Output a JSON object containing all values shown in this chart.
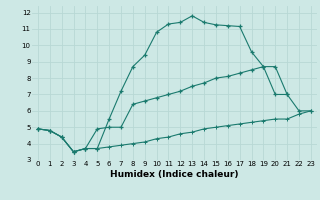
{
  "xlabel": "Humidex (Indice chaleur)",
  "bg_color": "#cde8e5",
  "grid_color": "#b8d8d5",
  "line_color": "#1a7a6e",
  "xlim": [
    -0.5,
    23.5
  ],
  "ylim": [
    3,
    12.4
  ],
  "xticks": [
    0,
    1,
    2,
    3,
    4,
    5,
    6,
    7,
    8,
    9,
    10,
    11,
    12,
    13,
    14,
    15,
    16,
    17,
    18,
    19,
    20,
    21,
    22,
    23
  ],
  "yticks": [
    3,
    4,
    5,
    6,
    7,
    8,
    9,
    10,
    11,
    12
  ],
  "line1_x": [
    0,
    1,
    2,
    3,
    4,
    5,
    6,
    7,
    8,
    9,
    10,
    11,
    12,
    13,
    14,
    15,
    16,
    17,
    18,
    19,
    20,
    21
  ],
  "line1_y": [
    4.9,
    4.8,
    4.4,
    3.5,
    3.7,
    3.7,
    5.5,
    7.2,
    8.7,
    9.4,
    10.8,
    11.3,
    11.4,
    11.8,
    11.4,
    11.25,
    11.2,
    11.15,
    9.6,
    8.7,
    7.0,
    7.0
  ],
  "line2_x": [
    0,
    1,
    2,
    3,
    4,
    5,
    6,
    7,
    8,
    9,
    10,
    11,
    12,
    13,
    14,
    15,
    16,
    17,
    18,
    19,
    20,
    21,
    22,
    23
  ],
  "line2_y": [
    4.9,
    4.8,
    4.4,
    3.5,
    3.7,
    4.9,
    5.0,
    5.0,
    6.4,
    6.6,
    6.8,
    7.0,
    7.2,
    7.5,
    7.7,
    8.0,
    8.1,
    8.3,
    8.5,
    8.7,
    8.7,
    7.0,
    6.0,
    6.0
  ],
  "line3_x": [
    0,
    1,
    2,
    3,
    4,
    5,
    6,
    7,
    8,
    9,
    10,
    11,
    12,
    13,
    14,
    15,
    16,
    17,
    18,
    19,
    20,
    21,
    22,
    23
  ],
  "line3_y": [
    4.9,
    4.8,
    4.4,
    3.5,
    3.7,
    3.7,
    3.8,
    3.9,
    4.0,
    4.1,
    4.3,
    4.4,
    4.6,
    4.7,
    4.9,
    5.0,
    5.1,
    5.2,
    5.3,
    5.4,
    5.5,
    5.5,
    5.8,
    6.0
  ],
  "xlabel_fontsize": 6.5,
  "tick_fontsize": 5.0
}
